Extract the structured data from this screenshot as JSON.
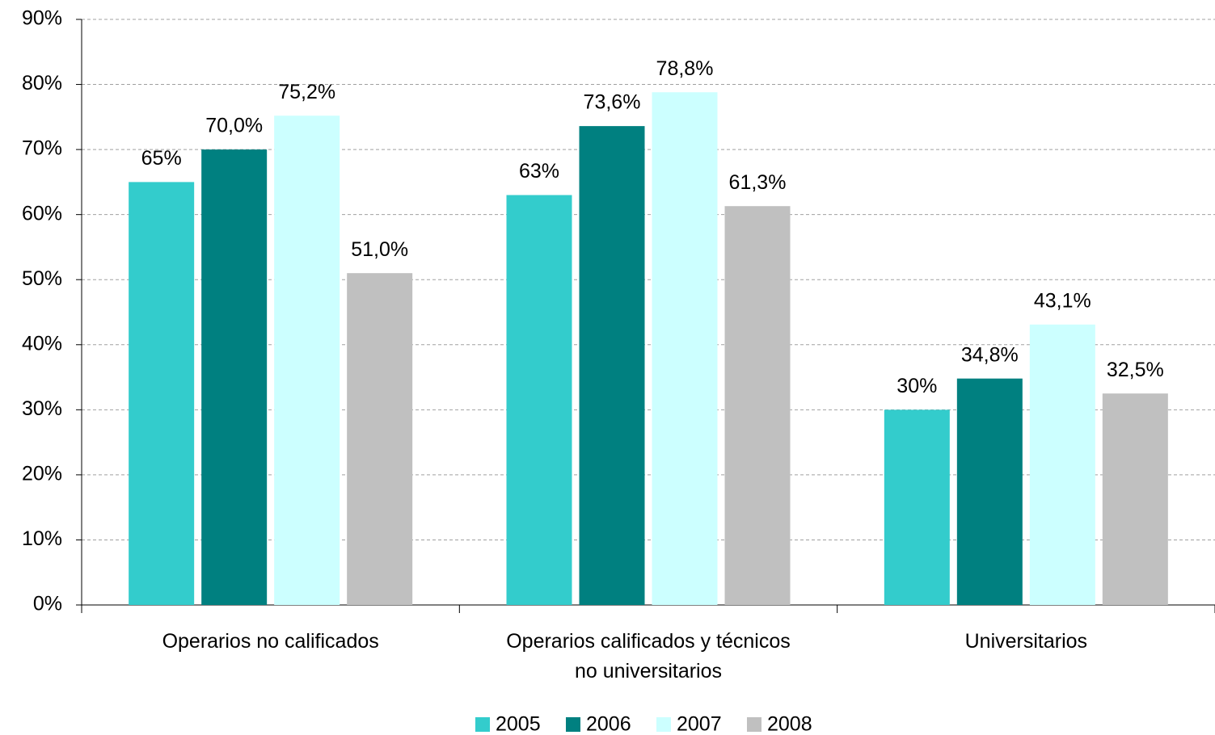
{
  "chart_data": {
    "type": "bar",
    "categories": [
      "Operarios no calificados",
      "Operarios calificados y técnicos no universitarios",
      "Universitarios"
    ],
    "series": [
      {
        "name": "2005",
        "color": "#33cccc",
        "values": [
          65,
          63,
          30
        ],
        "value_labels": [
          "65%",
          "63%",
          "30%"
        ]
      },
      {
        "name": "2006",
        "color": "#008080",
        "values": [
          70.0,
          73.6,
          34.8
        ],
        "value_labels": [
          "70,0%",
          "73,6%",
          "34,8%"
        ]
      },
      {
        "name": "2007",
        "color": "#ccffff",
        "values": [
          75.2,
          78.8,
          43.1
        ],
        "value_labels": [
          "75,2%",
          "78,8%",
          "43,1%"
        ]
      },
      {
        "name": "2008",
        "color": "#c0c0c0",
        "values": [
          51.0,
          61.3,
          32.5
        ],
        "value_labels": [
          "51,0%",
          "61,3%",
          "32,5%"
        ]
      }
    ],
    "ylim": [
      0,
      90
    ],
    "yticks": [
      {
        "value": 0,
        "label": "0%"
      },
      {
        "value": 10,
        "label": "10%"
      },
      {
        "value": 20,
        "label": "20%"
      },
      {
        "value": 30,
        "label": "30%"
      },
      {
        "value": 40,
        "label": "40%"
      },
      {
        "value": 50,
        "label": "50%"
      },
      {
        "value": 60,
        "label": "60%"
      },
      {
        "value": 70,
        "label": "70%"
      },
      {
        "value": 80,
        "label": "80%"
      },
      {
        "value": 90,
        "label": "90%"
      }
    ],
    "grid": true,
    "legend": "bottom"
  }
}
